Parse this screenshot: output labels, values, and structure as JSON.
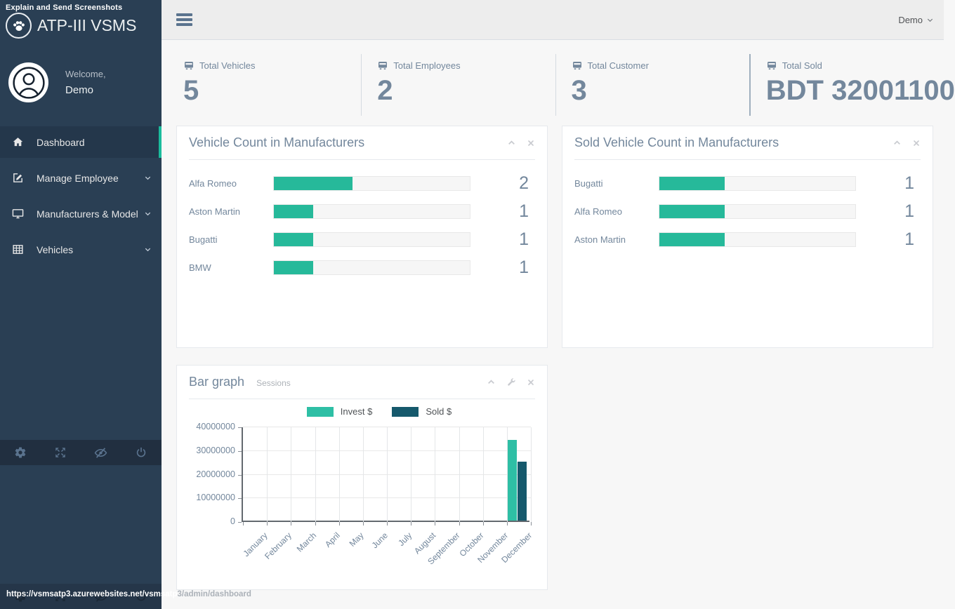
{
  "app": {
    "extension_title": "Explain and Send Screenshots",
    "brand": "ATP-III VSMS"
  },
  "sidebar": {
    "welcome_label": "Welcome,",
    "username": "Demo",
    "menu": [
      {
        "label": "Dashboard",
        "icon": "home-icon",
        "active": true,
        "expandable": false
      },
      {
        "label": "Manage Employee",
        "icon": "edit-icon",
        "active": false,
        "expandable": true
      },
      {
        "label": "Manufacturers & Model",
        "icon": "desktop-icon",
        "active": false,
        "expandable": true
      },
      {
        "label": "Vehicles",
        "icon": "table-icon",
        "active": false,
        "expandable": true
      }
    ],
    "footer_icons": [
      "gear-icon",
      "fullscreen-icon",
      "eye-slash-icon",
      "power-icon"
    ]
  },
  "navbar": {
    "user_menu_label": "Demo"
  },
  "stats": [
    {
      "label": "Total Vehicles",
      "value": "5"
    },
    {
      "label": "Total Employees",
      "value": "2"
    },
    {
      "label": "Total Customer",
      "value": "3"
    },
    {
      "label": "Total Sold",
      "value": "BDT 32001100"
    }
  ],
  "panels": {
    "vehicle_count": {
      "title": "Vehicle Count in Manufacturers",
      "tools": [
        "collapse-icon",
        "close-icon"
      ],
      "rows": [
        {
          "label": "Alfa Romeo",
          "value": "2",
          "percent": 40
        },
        {
          "label": "Aston Martin",
          "value": "1",
          "percent": 20
        },
        {
          "label": "Bugatti",
          "value": "1",
          "percent": 20
        },
        {
          "label": "BMW",
          "value": "1",
          "percent": 20
        }
      ]
    },
    "sold_count": {
      "title": "Sold Vehicle Count in Manufacturers",
      "tools": [
        "collapse-icon",
        "close-icon"
      ],
      "rows": [
        {
          "label": "Bugatti",
          "value": "1",
          "percent": 33.5
        },
        {
          "label": "Alfa Romeo",
          "value": "1",
          "percent": 33.5
        },
        {
          "label": "Aston Martin",
          "value": "1",
          "percent": 33.5
        }
      ]
    },
    "bar_graph": {
      "title": "Bar graph",
      "subtitle": "Sessions",
      "tools": [
        "collapse-icon",
        "settings-icon",
        "close-icon"
      ]
    }
  },
  "chart_data": {
    "type": "bar",
    "title": "Bar graph",
    "subtitle": "Sessions",
    "categories": [
      "January",
      "February",
      "March",
      "April",
      "May",
      "June",
      "July",
      "August",
      "September",
      "October",
      "November",
      "December"
    ],
    "series": [
      {
        "name": "Invest $",
        "color": "#2EBFA5",
        "values": [
          0,
          0,
          0,
          0,
          0,
          0,
          0,
          0,
          0,
          0,
          0,
          34000000
        ]
      },
      {
        "name": "Sold $",
        "color": "#16596C",
        "values": [
          0,
          0,
          0,
          0,
          0,
          0,
          0,
          0,
          0,
          0,
          0,
          25000000
        ]
      }
    ],
    "xlabel": "",
    "ylabel": "",
    "ylim": [
      0,
      40000000
    ],
    "yticks": [
      0,
      10000000,
      20000000,
      30000000,
      40000000
    ],
    "grid": true,
    "legend_position": "top"
  },
  "status_bar": {
    "url_on_dark": "https://vsmsatp3.azurewebsites.net/vsmsatp",
    "url_on_light": "3/admin/dashboard"
  },
  "colors": {
    "sidebar_bg": "#2A3F54",
    "accent_teal": "#26B99A",
    "active_stripe": "#1ABB9C",
    "invest": "#2EBFA5",
    "sold": "#16596C",
    "text_slate": "#73879C"
  }
}
